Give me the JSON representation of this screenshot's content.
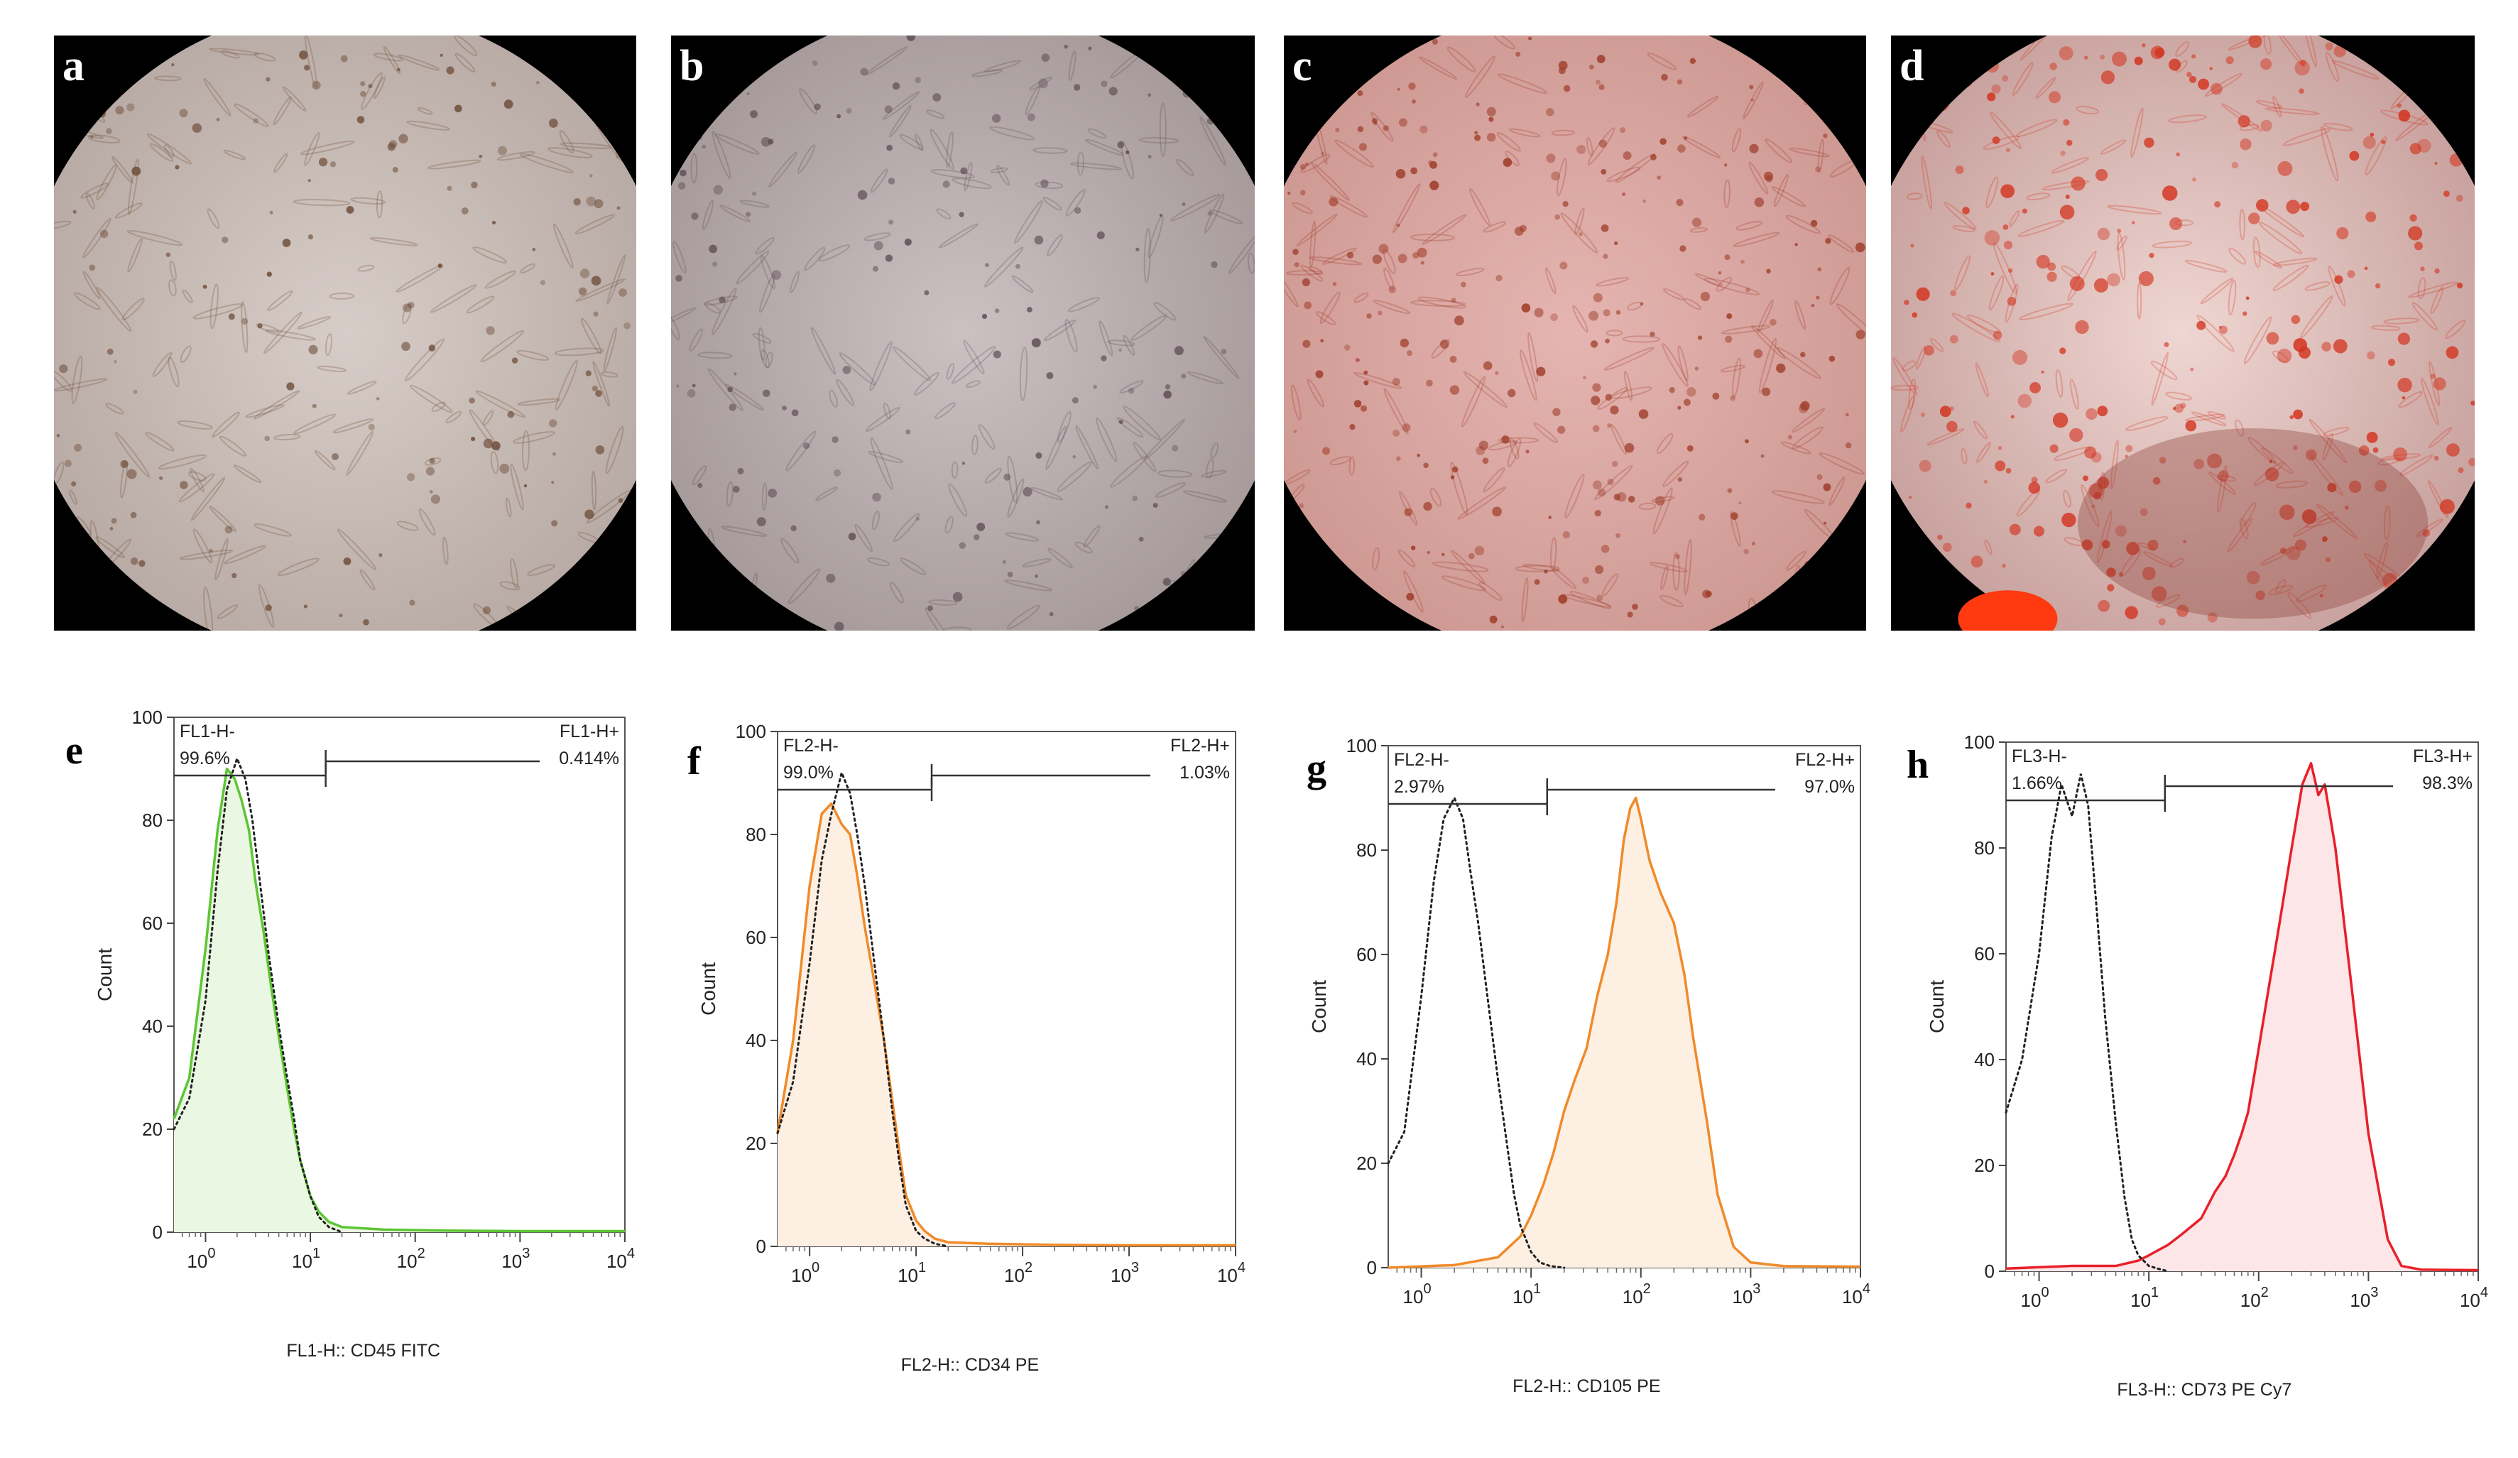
{
  "photos": [
    {
      "label": "a",
      "tone": [
        "#d7cdc8",
        "#b9aba5"
      ],
      "dot": "#6b4a35"
    },
    {
      "label": "b",
      "tone": [
        "#cbc1c3",
        "#a79b9c"
      ],
      "dot": "#5e4e55"
    },
    {
      "label": "c",
      "tone": [
        "#e6b5b1",
        "#cf9a94"
      ],
      "dot": "#9c3a26"
    },
    {
      "label": "d",
      "tone": [
        "#efd6d2",
        "#c9a39f"
      ],
      "dot": "#d3311c"
    }
  ],
  "histograms": [
    {
      "label": "e",
      "color": "#5cc633",
      "fill": "#eaf7e2",
      "ylabel": "Count",
      "xlabel": "FL1-H:: CD45 FITC",
      "yticks": [
        "0",
        "20",
        "40",
        "60",
        "80",
        "100"
      ],
      "xticks": [
        "0",
        "1",
        "2",
        "3",
        "4"
      ],
      "neg_gate": "FL1-H-",
      "neg_pct": "99.6%",
      "pos_gate": "FL1-H+",
      "pos_pct": "0.414%"
    },
    {
      "label": "f",
      "color": "#f08a2a",
      "fill": "#fdf0e3",
      "ylabel": "Count",
      "xlabel": "FL2-H:: CD34 PE",
      "yticks": [
        "0",
        "20",
        "40",
        "60",
        "80",
        "100"
      ],
      "xticks": [
        "0",
        "1",
        "2",
        "3",
        "4"
      ],
      "neg_gate": "FL2-H-",
      "neg_pct": "99.0%",
      "pos_gate": "FL2-H+",
      "pos_pct": "1.03%"
    },
    {
      "label": "g",
      "color": "#f08a2a",
      "fill": "#fdf0e3",
      "ylabel": "Count",
      "xlabel": "FL2-H:: CD105 PE",
      "yticks": [
        "0",
        "20",
        "40",
        "60",
        "80",
        "100"
      ],
      "xticks": [
        "0",
        "1",
        "2",
        "3",
        "4"
      ],
      "neg_gate": "FL2-H-",
      "neg_pct": "2.97%",
      "pos_gate": "FL2-H+",
      "pos_pct": "97.0%"
    },
    {
      "label": "h",
      "color": "#e8202a",
      "fill": "#fde6e8",
      "ylabel": "Count",
      "xlabel": "FL3-H:: CD73 PE Cy7",
      "yticks": [
        "0",
        "20",
        "40",
        "60",
        "80",
        "100"
      ],
      "xticks": [
        "0",
        "1",
        "2",
        "3",
        "4"
      ],
      "neg_gate": "FL3-H-",
      "neg_pct": "1.66%",
      "pos_gate": "FL3-H+",
      "pos_pct": "98.3%"
    }
  ],
  "chart_data": [
    {
      "type": "area",
      "xscale": "log",
      "xlim": [
        0.5,
        10000
      ],
      "ylim": [
        0,
        100
      ],
      "series": [
        {
          "x": [
            0.5,
            0.7,
            1.0,
            1.3,
            1.6,
            1.9,
            2.2,
            2.6,
            3.0,
            3.6,
            4.2,
            5,
            6,
            7,
            8,
            10,
            12,
            15,
            20,
            50,
            200,
            1000,
            10000
          ],
          "y": [
            22,
            30,
            55,
            78,
            90,
            88,
            84,
            78,
            68,
            58,
            48,
            38,
            28,
            20,
            14,
            7,
            4,
            2,
            1,
            0.5,
            0.3,
            0.2,
            0.2
          ]
        },
        {
          "x": [
            0.5,
            0.7,
            1.0,
            1.3,
            1.6,
            2.0,
            2.4,
            2.8,
            3.3,
            4.0,
            5,
            6,
            7,
            8,
            10,
            12,
            15,
            20
          ],
          "y": [
            20,
            26,
            45,
            70,
            86,
            92,
            88,
            80,
            68,
            54,
            40,
            30,
            22,
            14,
            7,
            3,
            1,
            0
          ]
        }
      ]
    },
    {
      "type": "area",
      "xscale": "log",
      "xlim": [
        0.5,
        10000
      ],
      "ylim": [
        0,
        100
      ],
      "series": [
        {
          "x": [
            0.5,
            0.7,
            1.0,
            1.3,
            1.6,
            2.0,
            2.4,
            2.8,
            3.3,
            4.0,
            5,
            6,
            7,
            8,
            10,
            12,
            15,
            20,
            50,
            200,
            1000,
            10000
          ],
          "y": [
            22,
            40,
            70,
            84,
            86,
            82,
            80,
            72,
            62,
            52,
            40,
            28,
            18,
            10,
            5,
            3,
            1.5,
            0.8,
            0.5,
            0.3,
            0.2,
            0.2
          ]
        },
        {
          "x": [
            0.5,
            0.7,
            1.0,
            1.3,
            1.6,
            2.0,
            2.4,
            2.8,
            3.3,
            4.0,
            5,
            6,
            7,
            8,
            10,
            12,
            15,
            20
          ],
          "y": [
            22,
            32,
            55,
            75,
            84,
            92,
            88,
            80,
            70,
            56,
            40,
            26,
            16,
            8,
            3,
            1.5,
            0.5,
            0
          ]
        }
      ]
    },
    {
      "type": "area",
      "xscale": "log",
      "xlim": [
        0.5,
        10000
      ],
      "ylim": [
        0,
        100
      ],
      "series": [
        {
          "x": [
            0.5,
            2,
            5,
            8,
            10,
            13,
            16,
            20,
            25,
            32,
            40,
            50,
            60,
            70,
            80,
            90,
            100,
            120,
            150,
            200,
            250,
            300,
            400,
            500,
            700,
            1000,
            2000,
            10000
          ],
          "y": [
            0,
            0.5,
            2,
            6,
            10,
            16,
            22,
            30,
            36,
            42,
            52,
            60,
            70,
            82,
            88,
            90,
            86,
            78,
            72,
            66,
            56,
            44,
            28,
            14,
            4,
            1,
            0.3,
            0.2
          ]
        },
        {
          "x": [
            0.5,
            0.7,
            1.0,
            1.3,
            1.6,
            2.0,
            2.4,
            2.8,
            3.3,
            4.0,
            5,
            6,
            7,
            8,
            10,
            12,
            15,
            20
          ],
          "y": [
            20,
            26,
            52,
            74,
            86,
            90,
            86,
            76,
            66,
            52,
            36,
            24,
            14,
            8,
            3,
            1,
            0.3,
            0
          ]
        }
      ]
    },
    {
      "type": "area",
      "xscale": "log",
      "xlim": [
        0.5,
        10000
      ],
      "ylim": [
        0,
        100
      ],
      "series": [
        {
          "x": [
            0.5,
            2,
            5,
            8,
            10,
            15,
            20,
            30,
            40,
            50,
            60,
            70,
            80,
            100,
            120,
            150,
            200,
            250,
            300,
            350,
            400,
            500,
            700,
            1000,
            1500,
            2000,
            3000,
            10000
          ],
          "y": [
            0.5,
            1,
            1,
            2,
            3,
            5,
            7,
            10,
            15,
            18,
            22,
            26,
            30,
            42,
            52,
            64,
            80,
            92,
            96,
            90,
            92,
            80,
            54,
            26,
            6,
            1,
            0.3,
            0.2
          ]
        },
        {
          "x": [
            0.5,
            0.7,
            1.0,
            1.3,
            1.6,
            2.0,
            2.4,
            2.8,
            3.3,
            4.0,
            5,
            6,
            7,
            8,
            10,
            12,
            15
          ],
          "y": [
            30,
            40,
            60,
            82,
            92,
            86,
            94,
            88,
            70,
            48,
            28,
            14,
            6,
            3,
            1,
            0.5,
            0
          ]
        }
      ]
    }
  ]
}
